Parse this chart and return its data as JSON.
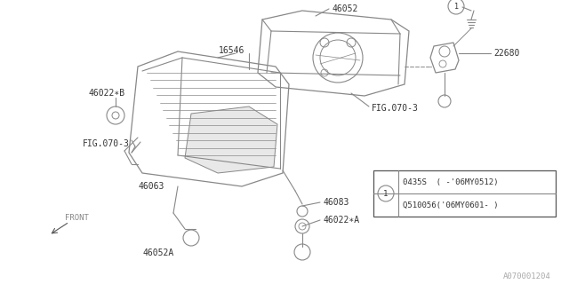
{
  "bg_color": "#ffffff",
  "line_color": "#888888",
  "text_color": "#333333",
  "watermark": "A070001204",
  "legend_row1": "0435S  ( -'06MY0512)",
  "legend_row2": "Q510056('06MY0601- )"
}
